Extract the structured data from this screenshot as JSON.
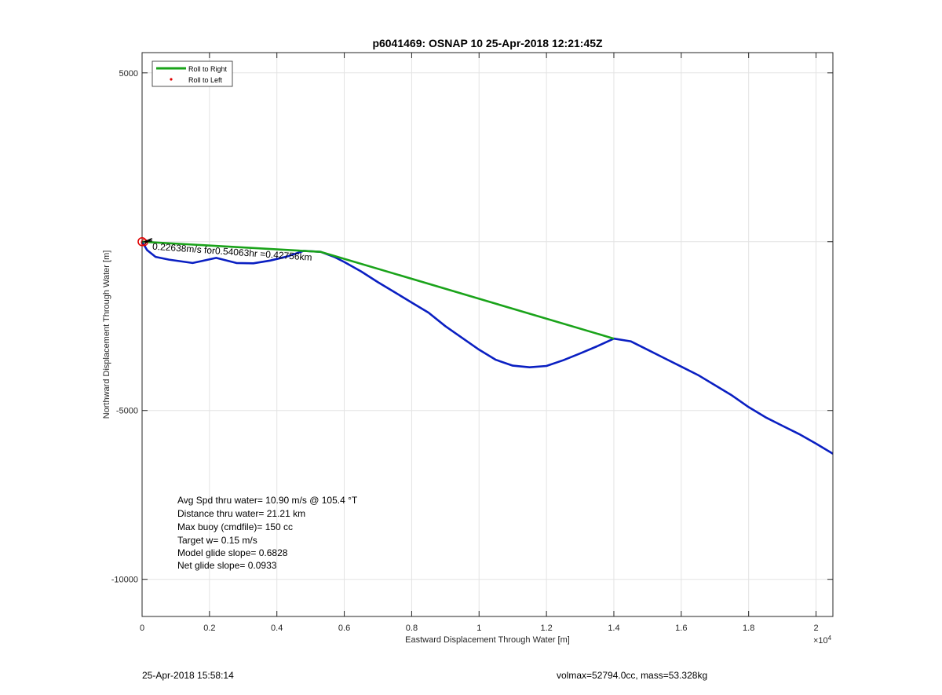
{
  "chart_data": {
    "type": "line",
    "title": "p6041469: OSNAP 10 25-Apr-2018 12:21:45Z",
    "xlabel": "Eastward Displacement Through Water [m]",
    "ylabel": "Northward Displacement Through Water [m]",
    "x_exponent_label": "×10",
    "x_exponent_power": "4",
    "xlim": [
      0,
      20500
    ],
    "ylim": [
      -11100,
      5600
    ],
    "x_ticks": [
      0,
      2000,
      4000,
      6000,
      8000,
      10000,
      12000,
      14000,
      16000,
      18000,
      20000
    ],
    "x_tick_labels": [
      "0",
      "0.2",
      "0.4",
      "0.6",
      "0.8",
      "1",
      "1.2",
      "1.4",
      "1.6",
      "1.8",
      "2"
    ],
    "y_ticks": [
      -10000,
      -5000,
      0,
      5000
    ],
    "y_tick_labels": [
      "-10000",
      "-5000",
      "",
      "5000"
    ],
    "grid": true,
    "legend": {
      "placement": "top-left",
      "entries": [
        {
          "label": "Roll to Right",
          "color": "#1aa31a",
          "style": "line"
        },
        {
          "label": "Roll to Left",
          "color": "#e00000",
          "style": "dot"
        }
      ]
    },
    "series": [
      {
        "color": "#0a1fc2",
        "x": [
          0,
          150,
          400,
          800,
          1500,
          2200,
          2800,
          3300,
          3800,
          4300,
          4800,
          5300,
          5700,
          6000,
          6500,
          7000,
          7500,
          8000,
          8500,
          9000,
          9500,
          10000,
          10500,
          11000,
          11500,
          12000,
          12500,
          13000,
          13500,
          14000,
          14500,
          15000,
          15500,
          16000,
          16500,
          17000,
          17500,
          18000,
          18500,
          19000,
          19500,
          20000,
          20500
        ],
        "y": [
          0,
          -250,
          -450,
          -530,
          -630,
          -480,
          -630,
          -640,
          -560,
          -440,
          -270,
          -300,
          -450,
          -600,
          -880,
          -1200,
          -1500,
          -1800,
          -2100,
          -2500,
          -2850,
          -3200,
          -3500,
          -3670,
          -3720,
          -3680,
          -3510,
          -3310,
          -3100,
          -2870,
          -2950,
          -3200,
          -3450,
          -3700,
          -3950,
          -4250,
          -4550,
          -4900,
          -5200,
          -5450,
          -5700,
          -5980,
          -6280
        ]
      },
      {
        "color": "#1aa31a",
        "x": [
          0,
          5300,
          14000
        ],
        "y": [
          0,
          -300,
          -2870
        ]
      }
    ],
    "markers": [
      {
        "label": "start-circle",
        "x": 0,
        "y": 0,
        "color": "#e00000"
      }
    ],
    "annotations": [
      {
        "text": "0.22638m/s for0.54063hr =0.42756km",
        "x": 300,
        "y": -230,
        "rotation_deg": 4
      }
    ],
    "stats": [
      "Avg Spd thru water= 10.90 m/s @ 105.4 °T",
      "Distance thru water= 21.21 km",
      "Max buoy (cmdfile)= 150 cc",
      "Target w= 0.15 m/s",
      "Model glide slope= 0.6828",
      "Net glide slope= 0.0933"
    ]
  },
  "footer": {
    "left": "25-Apr-2018 15:58:14",
    "right": "volmax=52794.0cc, mass=53.328kg"
  }
}
